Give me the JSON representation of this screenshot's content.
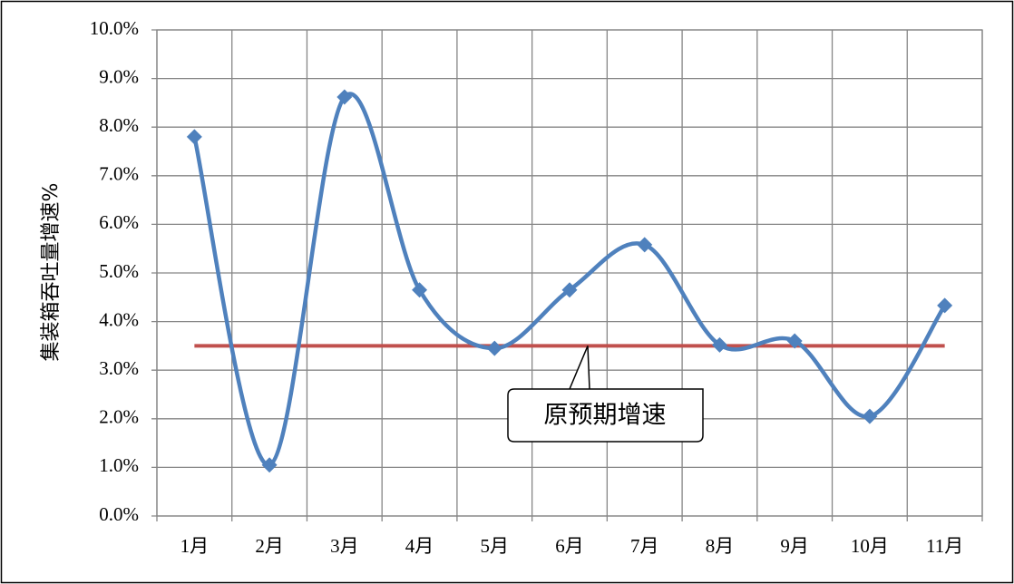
{
  "chart_data": {
    "type": "line",
    "y_label": "集装箱吞吐量增速%",
    "categories": [
      "1月",
      "2月",
      "3月",
      "4月",
      "5月",
      "6月",
      "7月",
      "8月",
      "9月",
      "10月",
      "11月"
    ],
    "values": [
      7.8,
      1.05,
      8.62,
      4.65,
      3.45,
      4.65,
      5.58,
      3.52,
      3.6,
      2.05,
      4.33
    ],
    "color": "#4f81bd",
    "smooth": true,
    "reference_line": {
      "value": 3.5,
      "label": "原预期增速",
      "color": "#c0504d"
    },
    "ylim": [
      0,
      10
    ],
    "yticks": [
      {
        "value": 0,
        "label": "0.0%"
      },
      {
        "value": 1,
        "label": "1.0%"
      },
      {
        "value": 2,
        "label": "2.0%"
      },
      {
        "value": 3,
        "label": "3.0%"
      },
      {
        "value": 4,
        "label": "4.0%"
      },
      {
        "value": 5,
        "label": "5.0%"
      },
      {
        "value": 6,
        "label": "6.0%"
      },
      {
        "value": 7,
        "label": "7.0%"
      },
      {
        "value": 8,
        "label": "8.0%"
      },
      {
        "value": 9,
        "label": "9.0%"
      },
      {
        "value": 10,
        "label": "10.0%"
      }
    ],
    "grid": true
  }
}
